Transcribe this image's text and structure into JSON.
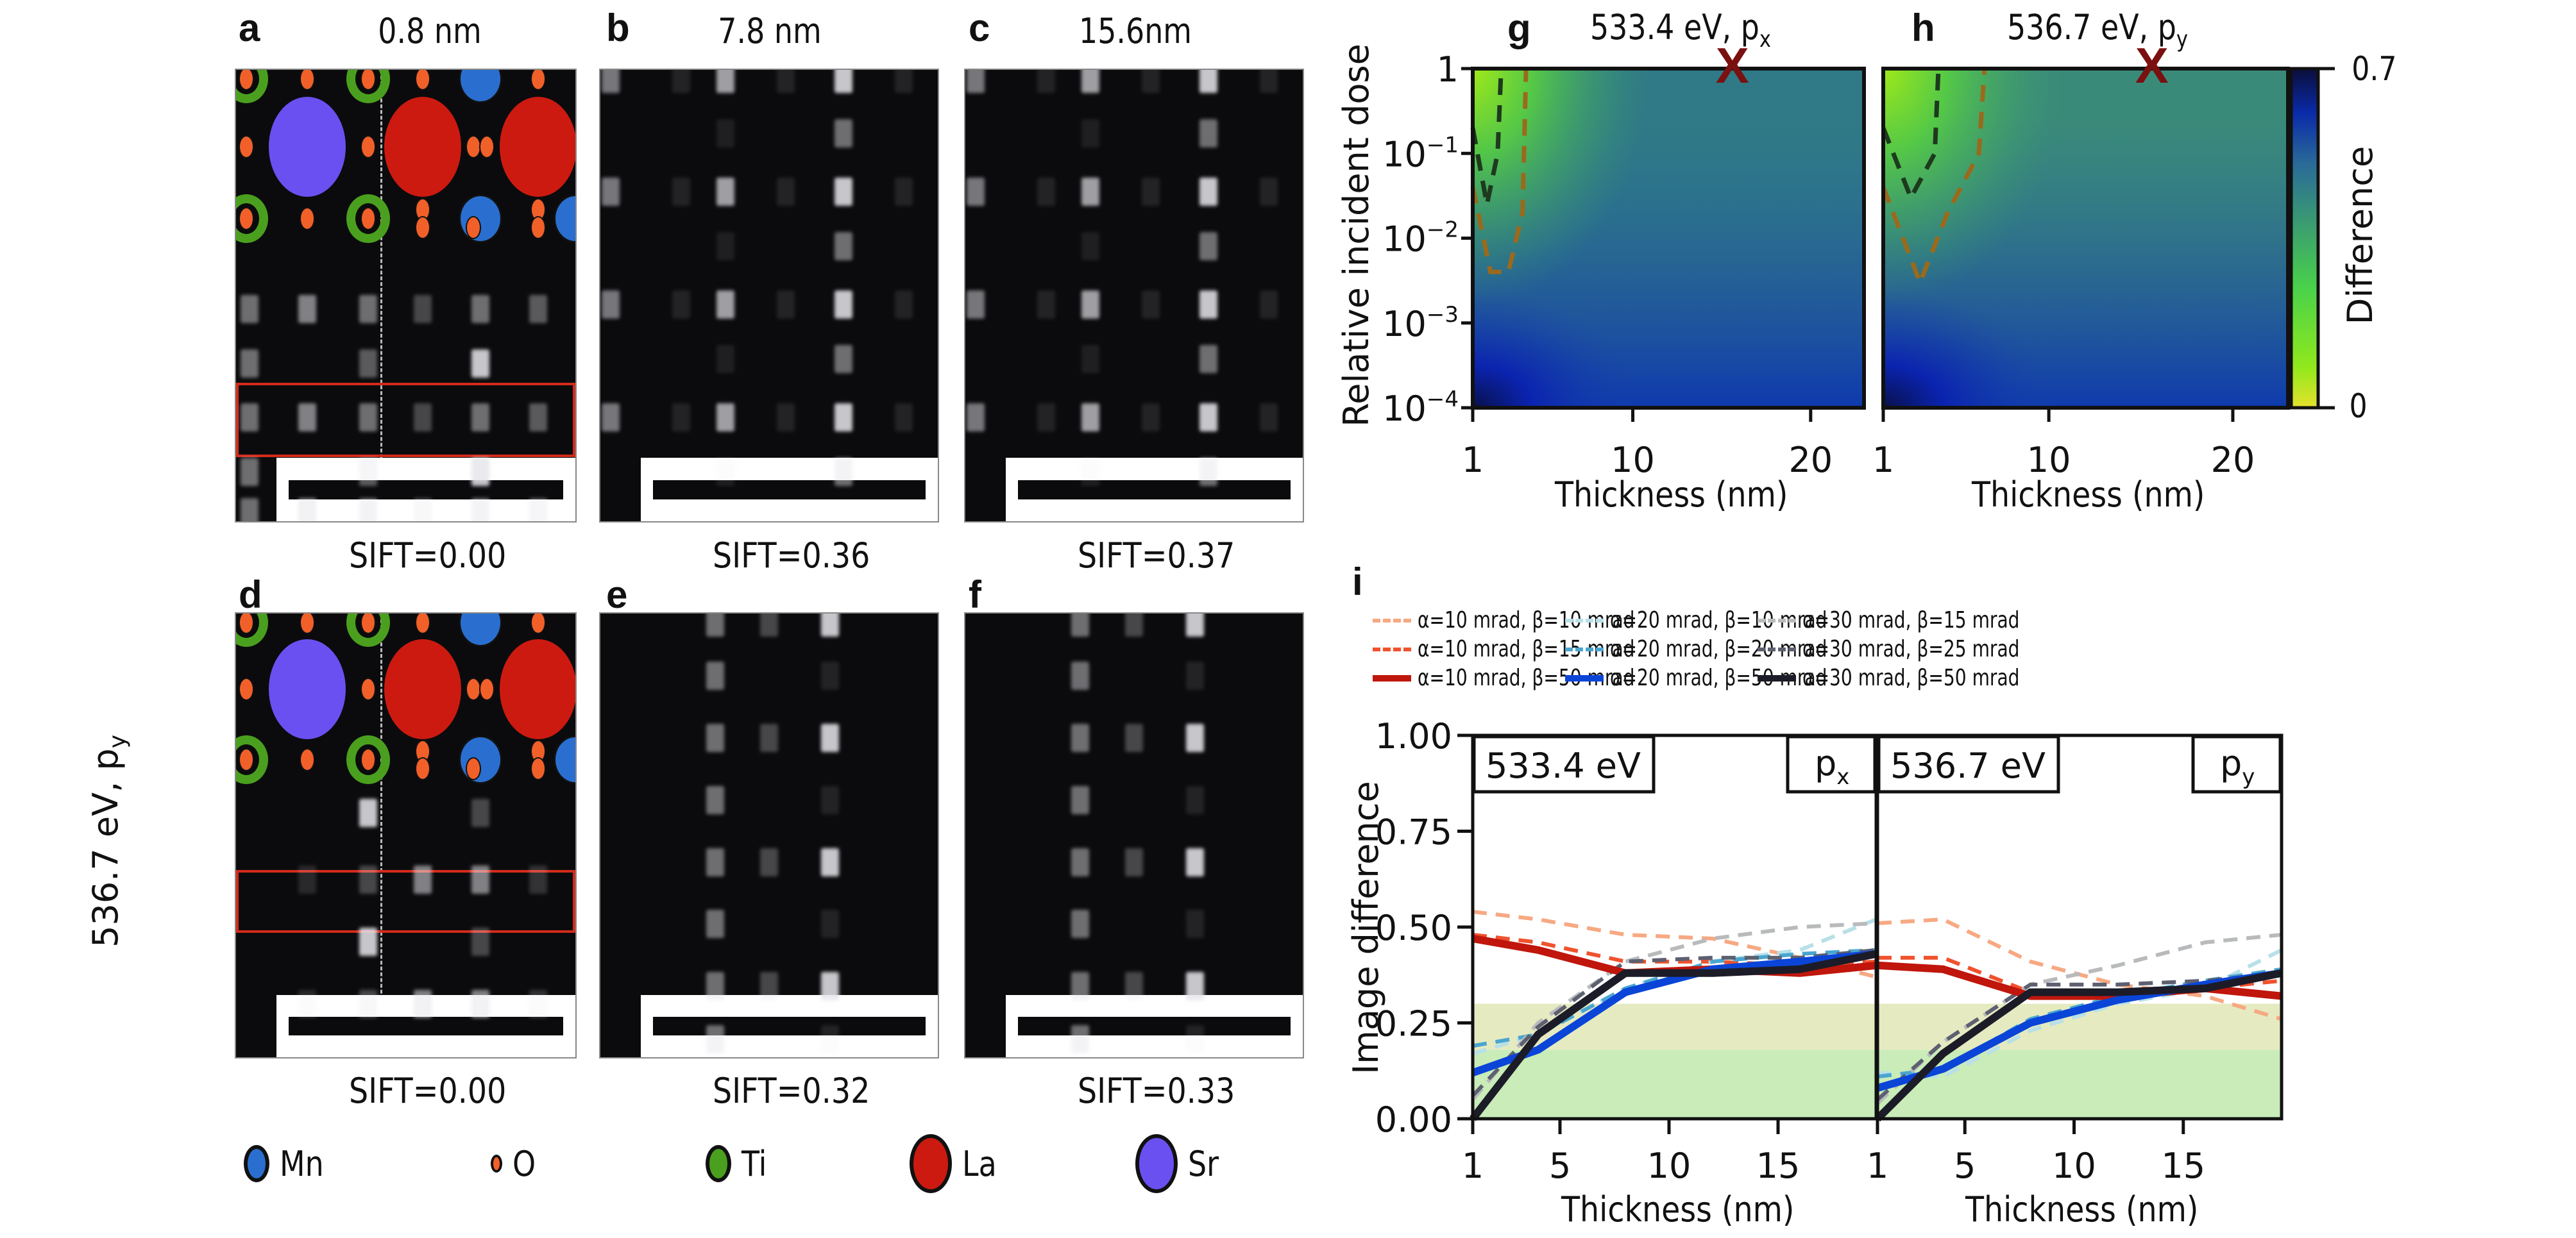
{
  "panels": {
    "a": {
      "letter": "a",
      "title": "0.8 nm",
      "sift": "SIFT=0.00"
    },
    "b": {
      "letter": "b",
      "title": "7.8 nm",
      "sift": "SIFT=0.36"
    },
    "c": {
      "letter": "c",
      "title": "15.6nm",
      "sift": "SIFT=0.37"
    },
    "d": {
      "letter": "d",
      "sift": "SIFT=0.00"
    },
    "e": {
      "letter": "e",
      "sift": "SIFT=0.32"
    },
    "f": {
      "letter": "f",
      "sift": "SIFT=0.33"
    },
    "row2_label": "536.7 eV, p",
    "row2_label_sub": "y"
  },
  "atom_legend": [
    {
      "name": "Mn",
      "color": "#2a6fd0"
    },
    {
      "name": "O",
      "color": "#f2602a"
    },
    {
      "name": "Ti",
      "color": "#4aa01e"
    },
    {
      "name": "La",
      "color": "#cc1a10"
    },
    {
      "name": "Sr",
      "color": "#6a50f0"
    }
  ],
  "heatmaps": {
    "g": {
      "letter": "g",
      "title": "533.4 eV, p",
      "title_sub": "x"
    },
    "h": {
      "letter": "h",
      "title": "536.7 eV, p",
      "title_sub": "y"
    },
    "ylabel": "Relative incident dose",
    "xlabel": "Thickness (nm)",
    "yticks": [
      "1",
      "10",
      "10",
      "10",
      "10"
    ],
    "ytick_exps": [
      "",
      "−1",
      "−2",
      "−3",
      "−4"
    ],
    "xticks": [
      "1",
      "10",
      "20"
    ],
    "colorbar": {
      "label": "Difference",
      "max": "0.7",
      "min": "0"
    },
    "marker": "X"
  },
  "chart_data": [
    {
      "type": "heatmap",
      "panel": "g",
      "title": "533.4 eV, p_x",
      "xlabel": "Thickness (nm)",
      "ylabel": "Relative incident dose",
      "xlim": [
        1,
        23
      ],
      "ylim_log10": [
        -4,
        0
      ],
      "xticks": [
        1,
        10,
        20
      ],
      "yticks": [
        "1",
        "10^-1",
        "10^-2",
        "10^-3",
        "10^-4"
      ],
      "colorbar": {
        "label": "Difference",
        "range": [
          0,
          0.7
        ],
        "colormap": "yellow-green-blue"
      },
      "marker_x": {
        "thickness": 15.6,
        "dose": 1
      },
      "contours": [
        {
          "style": "dark dashed",
          "points": [
            [
              1,
              0.2
            ],
            [
              1.8,
              0.025
            ],
            [
              2.4,
              0.1
            ],
            [
              2.6,
              1
            ]
          ]
        },
        {
          "style": "brown dashed",
          "points": [
            [
              1,
              0.04
            ],
            [
              2,
              0.004
            ],
            [
              3,
              0.004
            ],
            [
              3.8,
              0.02
            ],
            [
              4,
              1
            ]
          ]
        }
      ]
    },
    {
      "type": "heatmap",
      "panel": "h",
      "title": "536.7 eV, p_y",
      "xlabel": "Thickness (nm)",
      "xlim": [
        1,
        23
      ],
      "ylim_log10": [
        -4,
        0
      ],
      "xticks": [
        1,
        10,
        20
      ],
      "colorbar": {
        "label": "Difference",
        "range": [
          0,
          0.7
        ]
      },
      "marker_x": {
        "thickness": 15.6,
        "dose": 1
      },
      "contours": [
        {
          "style": "dark dashed",
          "points": [
            [
              1,
              0.2
            ],
            [
              2.5,
              0.03
            ],
            [
              3.8,
              0.1
            ],
            [
              4,
              1
            ]
          ]
        },
        {
          "style": "brown dashed",
          "points": [
            [
              1,
              0.04
            ],
            [
              3,
              0.003
            ],
            [
              4.5,
              0.02
            ],
            [
              6.2,
              0.1
            ],
            [
              6.5,
              1
            ]
          ]
        }
      ]
    },
    {
      "type": "line",
      "panel": "i",
      "ylabel": "Image difference",
      "xlabel": "Thickness (nm)",
      "ylim": [
        0,
        1
      ],
      "yticks": [
        "0.00",
        "0.25",
        "0.50",
        "0.75",
        "1.00"
      ],
      "xticks": [
        1,
        5,
        10,
        15
      ],
      "xlim": [
        1,
        19.5
      ],
      "shaded_bands": [
        {
          "from": 0.0,
          "to": 0.18,
          "color": "#c9ecb8"
        },
        {
          "from": 0.18,
          "to": 0.3,
          "color": "#e6eac0"
        }
      ],
      "x": [
        1,
        4,
        8,
        12,
        16,
        19.5
      ],
      "subplots": [
        {
          "label": "533.4 eV",
          "pol": "p",
          "pol_sub": "x",
          "series": [
            {
              "name": "α=10 mrad, β=10 mrad",
              "values": [
                0.54,
                0.52,
                0.48,
                0.47,
                0.42,
                0.37
              ]
            },
            {
              "name": "α=10 mrad, β=15 mrad",
              "values": [
                0.48,
                0.46,
                0.41,
                0.41,
                0.4,
                0.41
              ]
            },
            {
              "name": "α=10 mrad, β=50 mrad",
              "values": [
                0.47,
                0.44,
                0.38,
                0.39,
                0.38,
                0.4
              ]
            },
            {
              "name": "α=20 mrad, β=10 mrad",
              "values": [
                0.17,
                0.22,
                0.34,
                0.41,
                0.44,
                0.52
              ]
            },
            {
              "name": "α=20 mrad, β=20 mrad",
              "values": [
                0.19,
                0.22,
                0.34,
                0.41,
                0.43,
                0.44
              ]
            },
            {
              "name": "α=20 mrad, β=50 mrad",
              "values": [
                0.12,
                0.18,
                0.33,
                0.39,
                0.41,
                0.43
              ]
            },
            {
              "name": "α=30 mrad, β=15 mrad",
              "values": [
                0.05,
                0.25,
                0.41,
                0.47,
                0.5,
                0.51
              ]
            },
            {
              "name": "α=30 mrad, β=25 mrad",
              "values": [
                0.06,
                0.24,
                0.41,
                0.42,
                0.42,
                0.44
              ]
            },
            {
              "name": "α=30 mrad, β=50 mrad",
              "values": [
                0.0,
                0.22,
                0.38,
                0.38,
                0.39,
                0.43
              ]
            }
          ]
        },
        {
          "label": "536.7 eV",
          "pol": "p",
          "pol_sub": "y",
          "series": [
            {
              "name": "α=10 mrad, β=10 mrad",
              "values": [
                0.51,
                0.52,
                0.41,
                0.35,
                0.32,
                0.26
              ]
            },
            {
              "name": "α=10 mrad, β=15 mrad",
              "values": [
                0.42,
                0.42,
                0.33,
                0.32,
                0.34,
                0.36
              ]
            },
            {
              "name": "α=10 mrad, β=50 mrad",
              "values": [
                0.4,
                0.39,
                0.32,
                0.32,
                0.34,
                0.32
              ]
            },
            {
              "name": "α=20 mrad, β=10 mrad",
              "values": [
                0.12,
                0.11,
                0.23,
                0.3,
                0.34,
                0.44
              ]
            },
            {
              "name": "α=20 mrad, β=20 mrad",
              "values": [
                0.11,
                0.13,
                0.26,
                0.32,
                0.36,
                0.39
              ]
            },
            {
              "name": "α=20 mrad, β=50 mrad",
              "values": [
                0.08,
                0.13,
                0.25,
                0.31,
                0.35,
                0.38
              ]
            },
            {
              "name": "α=30 mrad, β=15 mrad",
              "values": [
                0.04,
                0.2,
                0.35,
                0.4,
                0.46,
                0.48
              ]
            },
            {
              "name": "α=30 mrad, β=25 mrad",
              "values": [
                0.05,
                0.2,
                0.35,
                0.35,
                0.36,
                0.38
              ]
            },
            {
              "name": "α=30 mrad, β=50 mrad",
              "values": [
                0.0,
                0.17,
                0.33,
                0.33,
                0.34,
                0.38
              ]
            }
          ]
        }
      ],
      "legend": [
        {
          "name": "α=10 mrad, β=10 mrad",
          "color": "#f7a983",
          "style": "dashed"
        },
        {
          "name": "α=10 mrad, β=15 mrad",
          "color": "#f0522e",
          "style": "dashed"
        },
        {
          "name": "α=10 mrad, β=50 mrad",
          "color": "#c0160c",
          "style": "solid"
        },
        {
          "name": "α=20 mrad, β=10 mrad",
          "color": "#b8e0e8",
          "style": "dashed"
        },
        {
          "name": "α=20 mrad, β=20 mrad",
          "color": "#4aa6d0",
          "style": "dashed"
        },
        {
          "name": "α=20 mrad, β=50 mrad",
          "color": "#0a45d8",
          "style": "solid"
        },
        {
          "name": "α=30 mrad, β=15 mrad",
          "color": "#b8babc",
          "style": "dashed"
        },
        {
          "name": "α=30 mrad, β=25 mrad",
          "color": "#5c6070",
          "style": "dashed"
        },
        {
          "name": "α=30 mrad, β=50 mrad",
          "color": "#1c1c28",
          "style": "solid"
        }
      ],
      "legend_placement": "top"
    }
  ],
  "panel_i": {
    "letter": "i",
    "ylabel": "Image difference",
    "xlabel": "Thickness (nm)"
  }
}
